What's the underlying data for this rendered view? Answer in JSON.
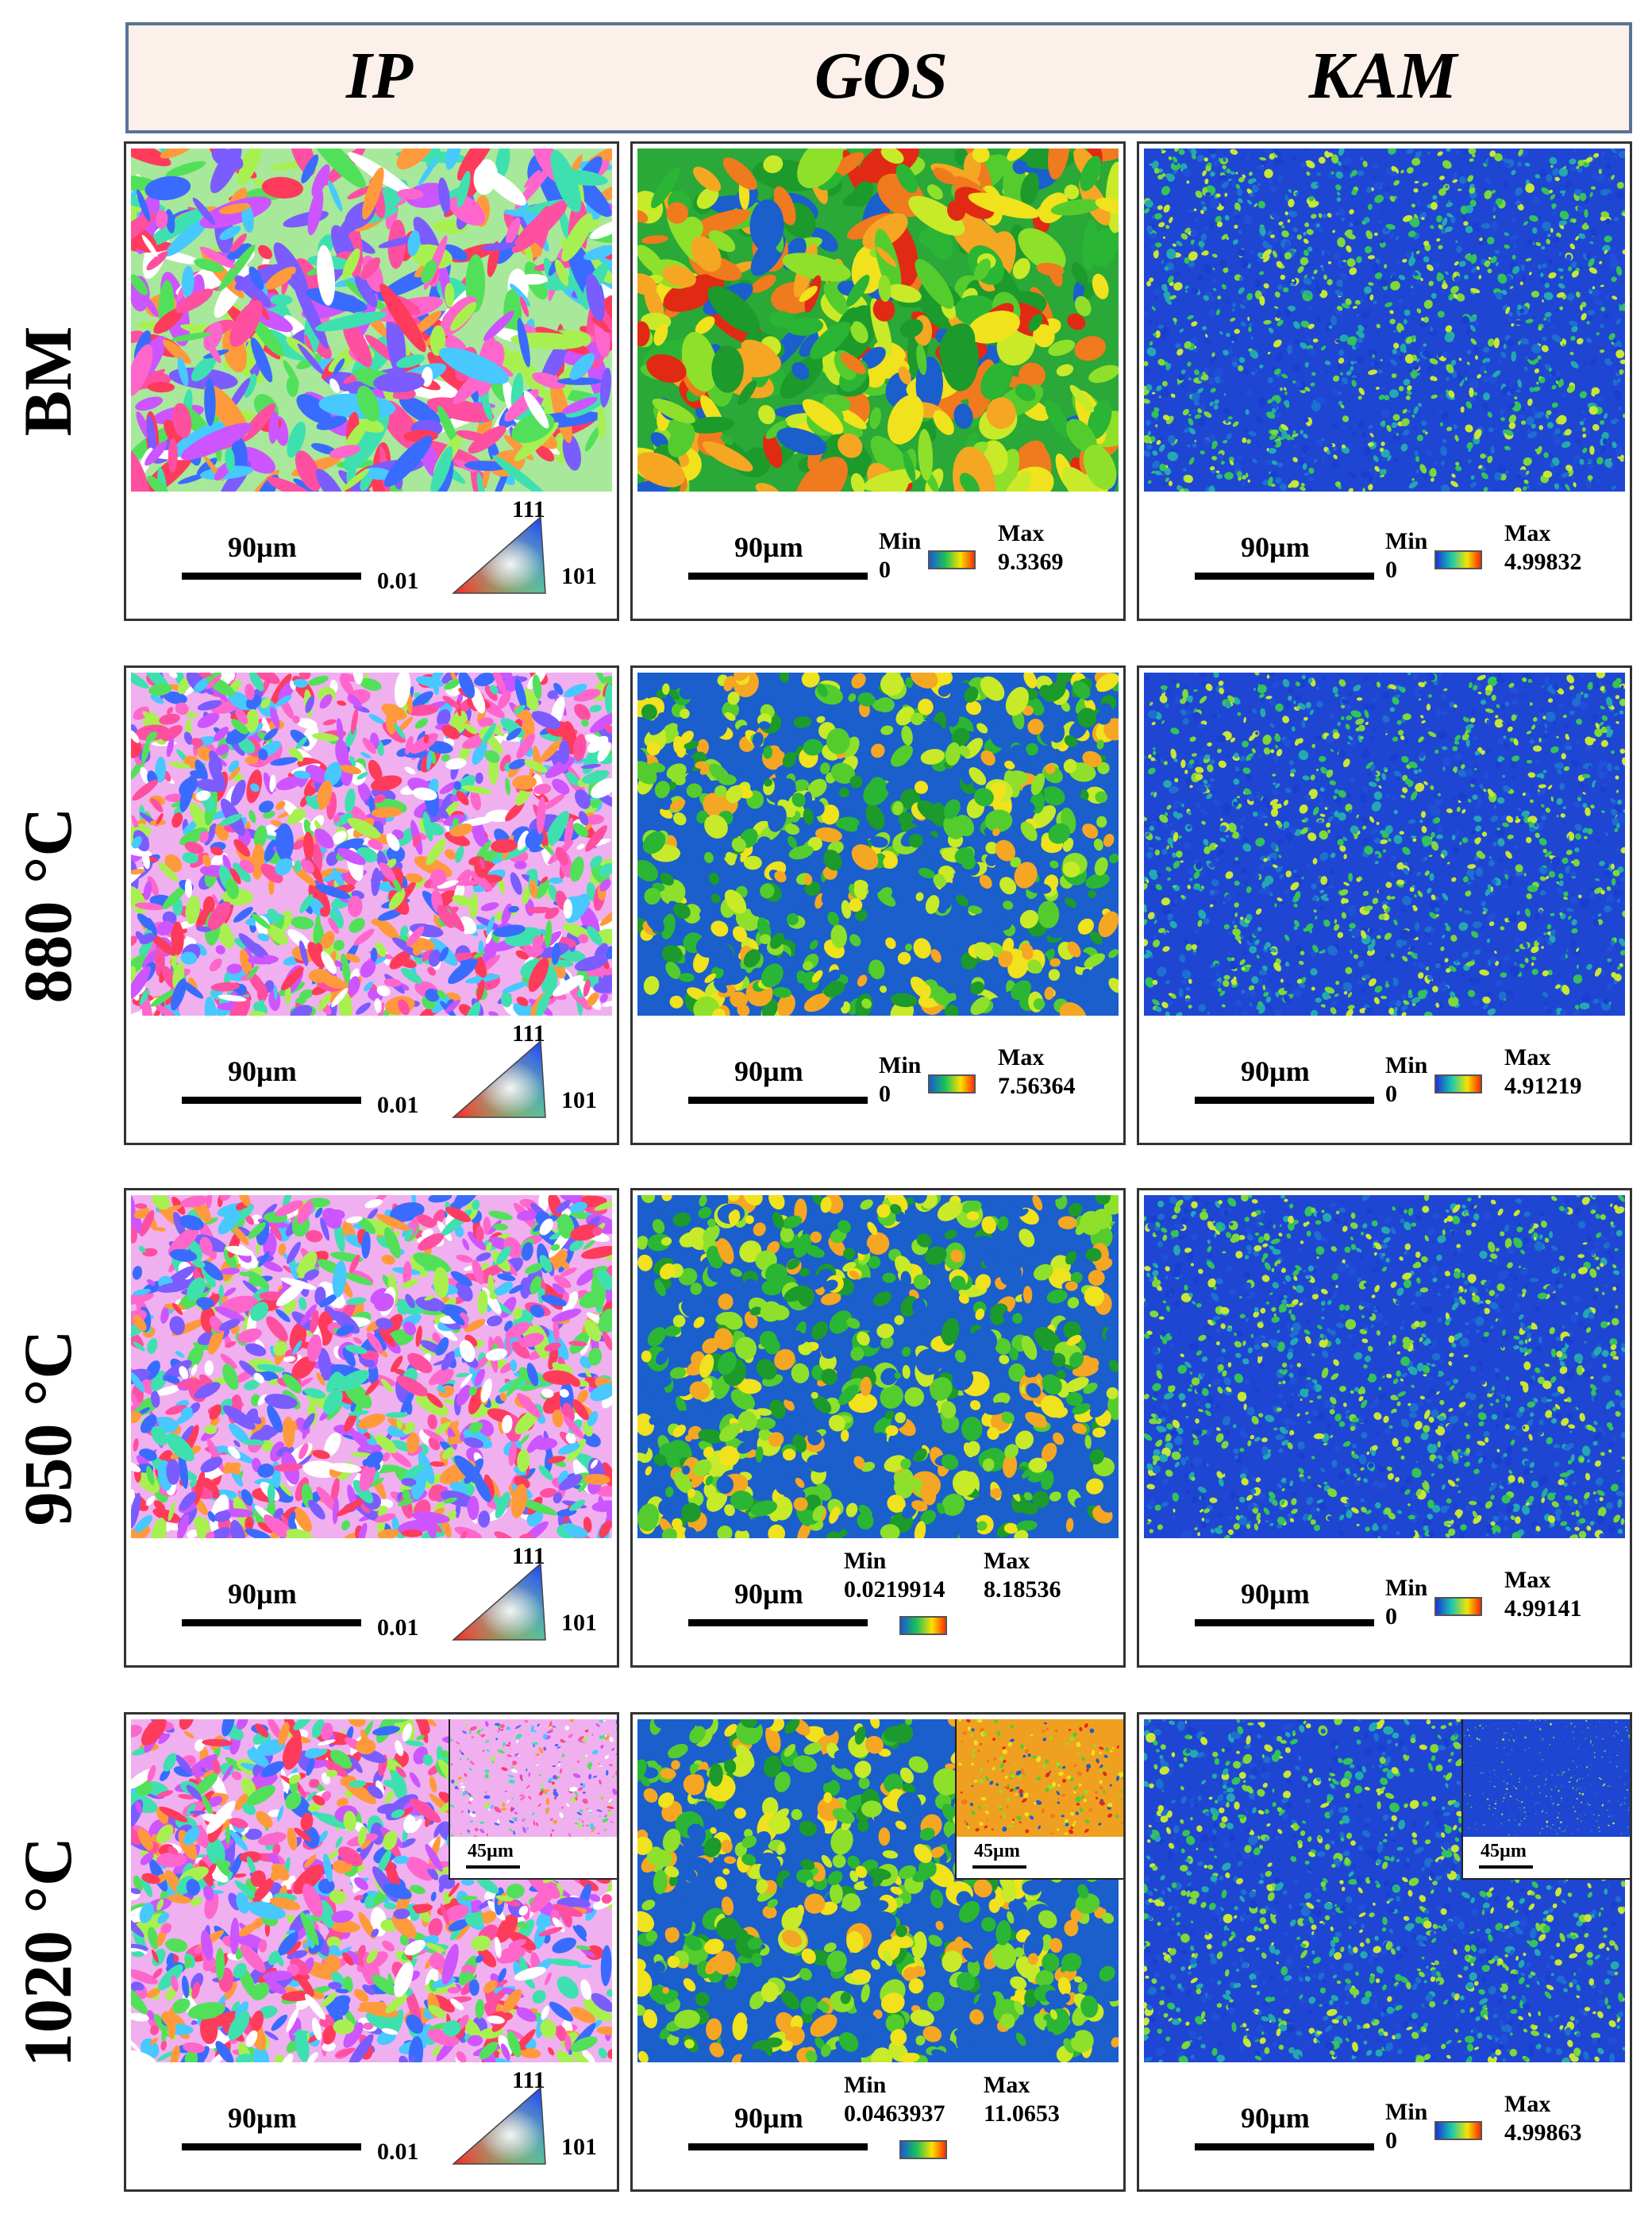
{
  "headers": [
    "IP",
    "GOS",
    "KAM"
  ],
  "rows": [
    {
      "label": "BM",
      "ip": {
        "scale": "90µm",
        "min_label": "0.01",
        "top_label": "111",
        "right_label": "101"
      },
      "gos": {
        "scale": "90µm",
        "min_title": "Min",
        "min_value": "0",
        "max_title": "Max",
        "max_value": "9.3369"
      },
      "kam": {
        "scale": "90µm",
        "min_title": "Min",
        "min_value": "0",
        "max_title": "Max",
        "max_value": "4.99832"
      }
    },
    {
      "label": "880 °C",
      "ip": {
        "scale": "90µm",
        "min_label": "0.01",
        "top_label": "111",
        "right_label": "101"
      },
      "gos": {
        "scale": "90µm",
        "min_title": "Min",
        "min_value": "0",
        "max_title": "Max",
        "max_value": "7.56364"
      },
      "kam": {
        "scale": "90µm",
        "min_title": "Min",
        "min_value": "0",
        "max_title": "Max",
        "max_value": "4.91219"
      }
    },
    {
      "label": "950 °C",
      "ip": {
        "scale": "90µm",
        "min_label": "0.01",
        "top_label": "111",
        "right_label": "101"
      },
      "gos": {
        "scale": "90µm",
        "min_title": "Min",
        "min_value": "0.0219914",
        "max_title": "Max",
        "max_value": "8.18536"
      },
      "kam": {
        "scale": "90µm",
        "min_title": "Min",
        "min_value": "0",
        "max_title": "Max",
        "max_value": "4.99141"
      }
    },
    {
      "label": "1020 °C",
      "ip": {
        "scale": "90µm",
        "min_label": "0.01",
        "top_label": "111",
        "right_label": "101",
        "inset_scale": "45µm"
      },
      "gos": {
        "scale": "90µm",
        "min_title": "Min",
        "min_value": "0.0463937",
        "max_title": "Max",
        "max_value": "11.0653",
        "inset_scale": "45µm"
      },
      "kam": {
        "scale": "90µm",
        "min_title": "Min",
        "min_value": "0",
        "max_title": "Max",
        "max_value": "4.99863",
        "inset_scale": "45µm"
      }
    }
  ],
  "palettes": {
    "ip": [
      "#ff3b5c",
      "#ff66cc",
      "#cc55ff",
      "#7a5cff",
      "#3a6bff",
      "#47c8ff",
      "#3fe0b0",
      "#52e05a",
      "#a8f050",
      "#ff9a3c",
      "#ffffff",
      "#ff4fa0"
    ],
    "gos": [
      "#1c9a2c",
      "#2bb534",
      "#55cc2e",
      "#8fe02a",
      "#c8ea28",
      "#f0e21c",
      "#f5a623",
      "#f07a1e",
      "#1a5fcc",
      "#e02a14"
    ],
    "kam": [
      "#1a3fcf",
      "#2050d8",
      "#1d6fd0",
      "#24a9b0",
      "#33c35a",
      "#7fd83a",
      "#c8e636"
    ]
  }
}
